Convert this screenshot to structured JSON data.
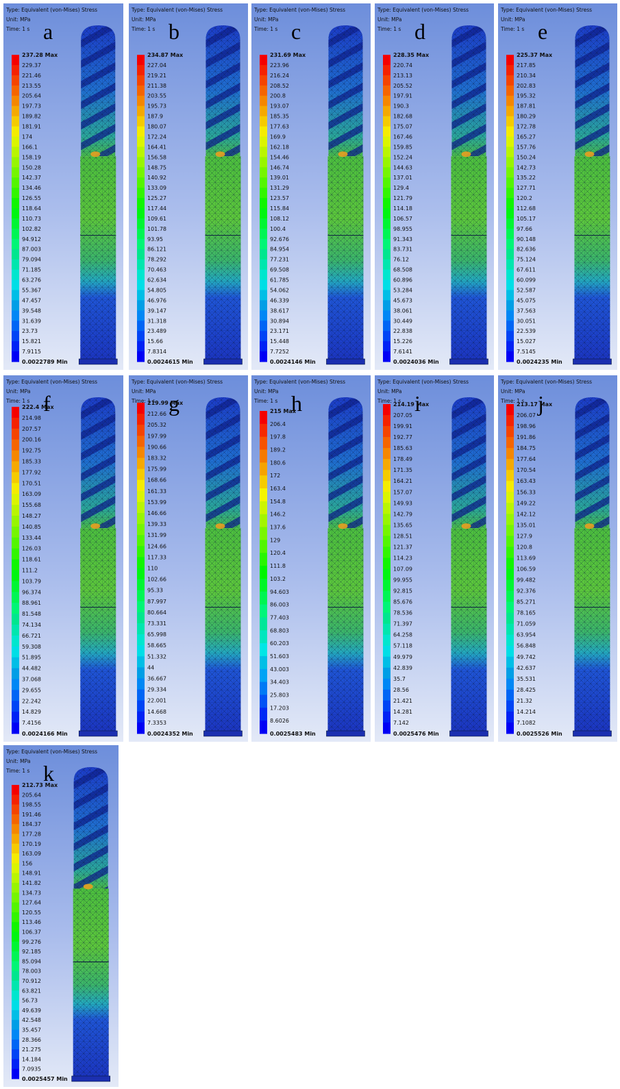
{
  "header": [
    "Type: Equivalent (von-Mises) Stress",
    "Unit: MPa",
    "Time: 1 s"
  ],
  "panels": [
    {
      "letter": "a",
      "legend": [
        "237.28 Max",
        "229.37",
        "221.46",
        "213.55",
        "205.64",
        "197.73",
        "189.82",
        "181.91",
        "174",
        "166.1",
        "158.19",
        "150.28",
        "142.37",
        "134.46",
        "126.55",
        "118.64",
        "110.73",
        "102.82",
        "94.912",
        "87.003",
        "79.094",
        "71.185",
        "63.276",
        "55.367",
        "47.457",
        "39.548",
        "31.639",
        "23.73",
        "15.821",
        "7.9115",
        "0.0022789 Min"
      ]
    },
    {
      "letter": "b",
      "legend": [
        "234.87 Max",
        "227.04",
        "219.21",
        "211.38",
        "203.55",
        "195.73",
        "187.9",
        "180.07",
        "172.24",
        "164.41",
        "156.58",
        "148.75",
        "140.92",
        "133.09",
        "125.27",
        "117.44",
        "109.61",
        "101.78",
        "93.95",
        "86.121",
        "78.292",
        "70.463",
        "62.634",
        "54.805",
        "46.976",
        "39.147",
        "31.318",
        "23.489",
        "15.66",
        "7.8314",
        "0.0024615 Min"
      ]
    },
    {
      "letter": "c",
      "legend": [
        "231.69 Max",
        "223.96",
        "216.24",
        "208.52",
        "200.8",
        "193.07",
        "185.35",
        "177.63",
        "169.9",
        "162.18",
        "154.46",
        "146.74",
        "139.01",
        "131.29",
        "123.57",
        "115.84",
        "108.12",
        "100.4",
        "92.676",
        "84.954",
        "77.231",
        "69.508",
        "61.785",
        "54.062",
        "46.339",
        "38.617",
        "30.894",
        "23.171",
        "15.448",
        "7.7252",
        "0.0024146 Min"
      ]
    },
    {
      "letter": "d",
      "legend": [
        "228.35 Max",
        "220.74",
        "213.13",
        "205.52",
        "197.91",
        "190.3",
        "182.68",
        "175.07",
        "167.46",
        "159.85",
        "152.24",
        "144.63",
        "137.01",
        "129.4",
        "121.79",
        "114.18",
        "106.57",
        "98.955",
        "91.343",
        "83.731",
        "76.12",
        "68.508",
        "60.896",
        "53.284",
        "45.673",
        "38.061",
        "30.449",
        "22.838",
        "15.226",
        "7.6141",
        "0.0024036 Min"
      ]
    },
    {
      "letter": "e",
      "legend": [
        "225.37 Max",
        "217.85",
        "210.34",
        "202.83",
        "195.32",
        "187.81",
        "180.29",
        "172.78",
        "165.27",
        "157.76",
        "150.24",
        "142.73",
        "135.22",
        "127.71",
        "120.2",
        "112.68",
        "105.17",
        "97.66",
        "90.148",
        "82.636",
        "75.124",
        "67.611",
        "60.099",
        "52.587",
        "45.075",
        "37.563",
        "30.051",
        "22.539",
        "15.027",
        "7.5145",
        "0.0024235 Min"
      ]
    },
    {
      "letter": "f",
      "legend": [
        "222.4 Max",
        "214.98",
        "207.57",
        "200.16",
        "192.75",
        "185.33",
        "177.92",
        "170.51",
        "163.09",
        "155.68",
        "148.27",
        "140.85",
        "133.44",
        "126.03",
        "118.61",
        "111.2",
        "103.79",
        "96.374",
        "88.961",
        "81.548",
        "74.134",
        "66.721",
        "59.308",
        "51.895",
        "44.482",
        "37.068",
        "29.655",
        "22.242",
        "14.829",
        "7.4156",
        "0.0024166 Min"
      ]
    },
    {
      "letter": "g",
      "legend": [
        "219.99 Max",
        "212.66",
        "205.32",
        "197.99",
        "190.66",
        "183.32",
        "175.99",
        "168.66",
        "161.33",
        "153.99",
        "146.66",
        "139.33",
        "131.99",
        "124.66",
        "117.33",
        "110",
        "102.66",
        "95.33",
        "87.997",
        "80.664",
        "73.331",
        "65.998",
        "58.665",
        "51.332",
        "44",
        "36.667",
        "29.334",
        "22.001",
        "14.668",
        "7.3353",
        "0.0024352 Min"
      ]
    },
    {
      "letter": "h",
      "legend": [
        "215 Max",
        "206.4",
        "197.8",
        "189.2",
        "180.6",
        "172",
        "163.4",
        "154.8",
        "146.2",
        "137.6",
        "129",
        "120.4",
        "111.8",
        "103.2",
        "94.603",
        "86.003",
        "77.403",
        "68.803",
        "60.203",
        "51.603",
        "43.003",
        "34.403",
        "25.803",
        "17.203",
        "8.6026",
        "0.0025483 Min"
      ]
    },
    {
      "letter": "i",
      "legend": [
        "214.19 Max",
        "207.05",
        "199.91",
        "192.77",
        "185.63",
        "178.49",
        "171.35",
        "164.21",
        "157.07",
        "149.93",
        "142.79",
        "135.65",
        "128.51",
        "121.37",
        "114.23",
        "107.09",
        "99.955",
        "92.815",
        "85.676",
        "78.536",
        "71.397",
        "64.258",
        "57.118",
        "49.979",
        "42.839",
        "35.7",
        "28.56",
        "21.421",
        "14.281",
        "7.142",
        "0.0025476 Min"
      ]
    },
    {
      "letter": "j",
      "legend": [
        "213.17 Max",
        "206.07",
        "198.96",
        "191.86",
        "184.75",
        "177.64",
        "170.54",
        "163.43",
        "156.33",
        "149.22",
        "142.12",
        "135.01",
        "127.9",
        "120.8",
        "113.69",
        "106.59",
        "99.482",
        "92.376",
        "85.271",
        "78.165",
        "71.059",
        "63.954",
        "56.848",
        "49.742",
        "42.637",
        "35.531",
        "28.425",
        "21.32",
        "14.214",
        "7.1082",
        "0.0025526 Min"
      ]
    },
    {
      "letter": "k",
      "legend": [
        "212.73 Max",
        "205.64",
        "198.55",
        "191.46",
        "184.37",
        "177.28",
        "170.19",
        "163.09",
        "156",
        "148.91",
        "141.82",
        "134.73",
        "127.64",
        "120.55",
        "113.46",
        "106.37",
        "99.276",
        "92.185",
        "85.094",
        "78.003",
        "70.912",
        "63.821",
        "56.73",
        "49.639",
        "42.548",
        "35.457",
        "28.366",
        "21.275",
        "14.184",
        "7.0935",
        "0.0025457 Min"
      ]
    }
  ]
}
